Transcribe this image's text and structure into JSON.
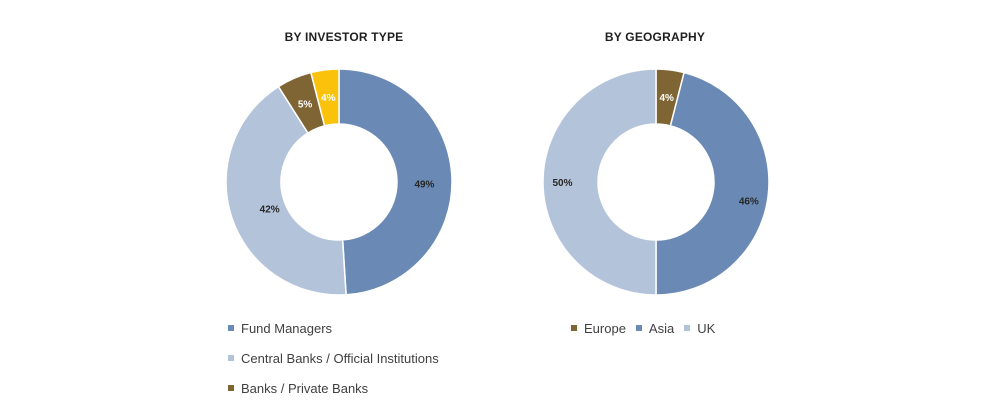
{
  "chart_data": [
    {
      "type": "donut",
      "title": "BY INVESTOR TYPE",
      "slices": [
        {
          "name": "Fund Managers",
          "value": 49,
          "label": "49%",
          "color": "#6a8ab5"
        },
        {
          "name": "Central Banks / Official Institutions",
          "value": 42,
          "label": "42%",
          "color": "#b3c4da"
        },
        {
          "name": "Banks / Private Banks",
          "value": 5,
          "label": "5%",
          "color": "#7f6434"
        },
        {
          "name": "",
          "value": 4,
          "label": "4%",
          "color": "#fac20a"
        }
      ],
      "legend": [
        "Fund Managers",
        "Central Banks / Official Institutions",
        "Banks / Private Banks"
      ],
      "legend_position": "bottom"
    },
    {
      "type": "donut",
      "title": "BY GEOGRAPHY",
      "slices": [
        {
          "name": "Europe",
          "value": 4,
          "label": "4%",
          "color": "#7f6434"
        },
        {
          "name": "Asia",
          "value": 46,
          "label": "46%",
          "color": "#6a8ab5"
        },
        {
          "name": "UK",
          "value": 50,
          "label": "50%",
          "color": "#b3c4da"
        }
      ],
      "legend": [
        "Europe",
        "Asia",
        "UK"
      ],
      "legend_position": "bottom"
    }
  ]
}
